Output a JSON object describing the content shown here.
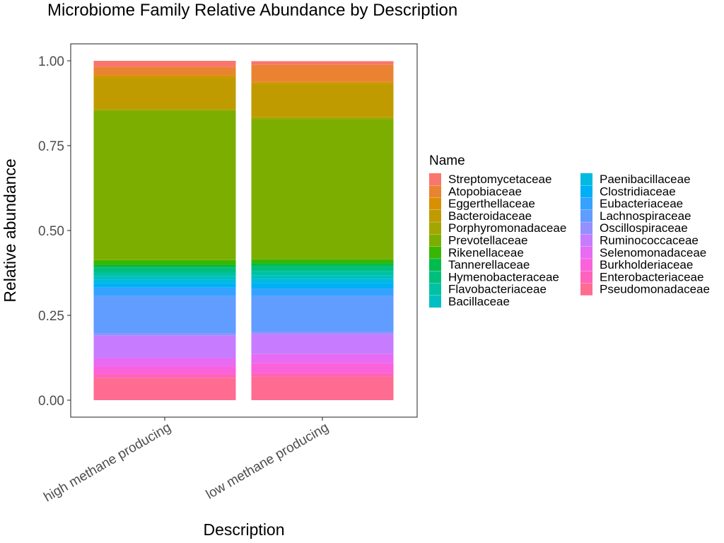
{
  "chart_data": {
    "type": "bar",
    "stacked": true,
    "title": "Microbiome Family Relative Abundance by Description",
    "xlabel": "Description",
    "ylabel": "Relative abundance",
    "ylim": [
      0,
      1
    ],
    "yticks": [
      "0.00",
      "0.25",
      "0.50",
      "0.75",
      "1.00"
    ],
    "categories": [
      "high methane producing",
      "low methane producing"
    ],
    "grid": false,
    "legend": {
      "title": "Name",
      "position": "right",
      "columns": 2
    },
    "series": [
      {
        "name": "Streptomycetaceae",
        "color": "#F8766D",
        "values": [
          0.018,
          0.011
        ]
      },
      {
        "name": "Atopobiaceae",
        "color": "#EA8331",
        "values": [
          0.024,
          0.05
        ]
      },
      {
        "name": "Eggerthellaceae",
        "color": "#D89000",
        "values": [
          0.006,
          0.004
        ]
      },
      {
        "name": "Bacteroidaceae",
        "color": "#C09B00",
        "values": [
          0.094,
          0.1
        ]
      },
      {
        "name": "Porphyromonadaceae",
        "color": "#A3A500",
        "values": [
          0.005,
          0.006
        ]
      },
      {
        "name": "Prevotellaceae",
        "color": "#7CAE00",
        "values": [
          0.44,
          0.413
        ]
      },
      {
        "name": "Rikenellaceae",
        "color": "#39B600",
        "values": [
          0.015,
          0.012
        ]
      },
      {
        "name": "Tannerellaceae",
        "color": "#00BB4E",
        "values": [
          0.007,
          0.009
        ]
      },
      {
        "name": "Hymenobacteraceae",
        "color": "#00BF7D",
        "values": [
          0.015,
          0.013
        ]
      },
      {
        "name": "Flavobacteriaceae",
        "color": "#00C1A3",
        "values": [
          0.011,
          0.014
        ]
      },
      {
        "name": "Bacillaceae",
        "color": "#00BFC4",
        "values": [
          0.01,
          0.01
        ]
      },
      {
        "name": "Paenibacillaceae",
        "color": "#00BAE0",
        "values": [
          0.01,
          0.012
        ]
      },
      {
        "name": "Clostridiaceae",
        "color": "#00B0F6",
        "values": [
          0.013,
          0.016
        ]
      },
      {
        "name": "Eubacteriaceae",
        "color": "#35A2FF",
        "values": [
          0.025,
          0.022
        ]
      },
      {
        "name": "Lachnospiraceae",
        "color": "#619CFF",
        "values": [
          0.11,
          0.105
        ]
      },
      {
        "name": "Oscillospiraceae",
        "color": "#9590FF",
        "values": [
          0.007,
          0.008
        ]
      },
      {
        "name": "Ruminococcaceae",
        "color": "#C77CFF",
        "values": [
          0.066,
          0.058
        ]
      },
      {
        "name": "Selenomonadaceae",
        "color": "#E76BF3",
        "values": [
          0.025,
          0.027
        ]
      },
      {
        "name": "Burkholderiaceae",
        "color": "#FA62DB",
        "values": [
          0.021,
          0.028
        ]
      },
      {
        "name": "Enterobacteriaceae",
        "color": "#FF62BC",
        "values": [
          0.012,
          0.012
        ]
      },
      {
        "name": "Pseudomonadaceae",
        "color": "#FF6C91",
        "values": [
          0.066,
          0.069
        ]
      }
    ]
  }
}
